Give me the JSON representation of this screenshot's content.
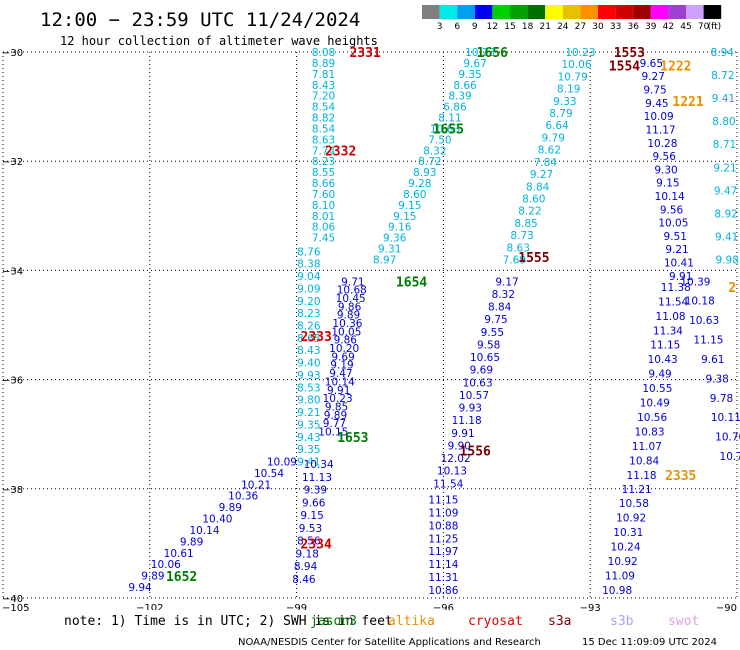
{
  "title": "12:00 − 23:59 UTC 11/24/2024",
  "subtitle": "12 hour collection of altimeter wave heights",
  "colorbar": {
    "labels": [
      "3",
      "6",
      "9",
      "12",
      "15",
      "18",
      "21",
      "24",
      "27",
      "30",
      "33",
      "36",
      "39",
      "42",
      "45",
      "70",
      "(ft)"
    ],
    "colors": [
      "#808080",
      "#00e8e8",
      "#00a0f0",
      "#0000f0",
      "#00d000",
      "#00a000",
      "#007000",
      "#ffff00",
      "#e8c000",
      "#ff9000",
      "#ff0000",
      "#d00000",
      "#a00000",
      "#ff00ff",
      "#a040d0",
      "#d0a0ff",
      "#000000"
    ]
  },
  "chart_data": {
    "type": "scatter",
    "xlim": [
      -105,
      -90
    ],
    "ylim": [
      -40,
      -30
    ],
    "x_ticks": [
      {
        "value": -105,
        "label": "−105"
      },
      {
        "value": -102,
        "label": "−102"
      },
      {
        "value": -99,
        "label": "−99"
      },
      {
        "value": -96,
        "label": "−96"
      },
      {
        "value": -93,
        "label": "−93"
      },
      {
        "value": -90,
        "label": "−90"
      }
    ],
    "y_ticks": [
      {
        "value": -30,
        "label": "−30"
      },
      {
        "value": -32,
        "label": "−32"
      },
      {
        "value": -34,
        "label": "−34"
      },
      {
        "value": -36,
        "label": "−36"
      },
      {
        "value": -38,
        "label": "−38"
      },
      {
        "value": -40,
        "label": "−40"
      }
    ],
    "grid": true,
    "colors": {
      "light": "#00b4dc",
      "dark": "#0000d8"
    },
    "series": [
      {
        "start": [
          -98.45,
          -30.0
        ],
        "end": [
          -98.45,
          -33.4
        ],
        "values": [
          "8.08",
          "8.89",
          "7.81",
          "8.43",
          "7.20",
          "8.54",
          "8.82",
          "8.54",
          "8.63",
          "7.74",
          "8.23",
          "8.55",
          "8.66",
          "7.60",
          "8.10",
          "8.01",
          "8.06",
          "7.45"
        ],
        "color": "light"
      },
      {
        "start": [
          -98.75,
          -33.65
        ],
        "end": [
          -98.75,
          -37.5
        ],
        "values": [
          "8.76",
          "8.38",
          "9.04",
          "9.09",
          "9.20",
          "8.23",
          "8.26",
          "8.65",
          "8.43",
          "9.40",
          "9.93",
          "8.53",
          "9.80",
          "9.21",
          "9.35",
          "9.43",
          "9.35",
          "9.41"
        ],
        "color": "light"
      },
      {
        "start": [
          -97.85,
          -34.2
        ],
        "end": [
          -98.25,
          -36.95
        ],
        "values": [
          "9.71",
          "10.68",
          "10.45",
          "9.86",
          "9.89",
          "10.36",
          "10.05",
          "9.86",
          "10.20",
          "9.69",
          "9.19",
          "9.47",
          "10.14",
          "9.91",
          "10.23",
          "9.85",
          "9.89",
          "9.77",
          "10.15"
        ],
        "color": "dark"
      },
      {
        "start": [
          -98.55,
          -37.55
        ],
        "end": [
          -98.85,
          -39.65
        ],
        "values": [
          "10.34",
          "11.13",
          "9.39",
          "9.66",
          "9.15",
          "9.53",
          "8.56",
          "9.18",
          "8.94",
          "8.46"
        ],
        "color": "dark"
      },
      {
        "start": [
          -99.3,
          -37.5
        ],
        "end": [
          -102.2,
          -39.8
        ],
        "values": [
          "10.09",
          "10.54",
          "10.21",
          "10.36",
          "9.89",
          "10.40",
          "10.14",
          "9.89",
          "10.61",
          "10.06",
          "9.89",
          "9.94"
        ],
        "color": "dark"
      },
      {
        "start": [
          -95.25,
          -30.0
        ],
        "end": [
          -97.2,
          -33.8
        ],
        "values": [
          "10.23",
          "9.67",
          "9.35",
          "8.66",
          "8.39",
          "6.86",
          "8.11",
          "10.63",
          "7.50",
          "8.32",
          "8.72",
          "8.93",
          "9.28",
          "8.60",
          "9.15",
          "9.15",
          "9.16",
          "9.36",
          "9.31",
          "8.97"
        ],
        "color": "light"
      },
      {
        "start": [
          -93.2,
          -30.0
        ],
        "end": [
          -94.55,
          -33.8
        ],
        "values": [
          "10.23",
          "10.06",
          "10.79",
          "8.19",
          "9.33",
          "8.79",
          "6.64",
          "9.79",
          "8.62",
          "7.84",
          "9.27",
          "8.84",
          "8.60",
          "8.22",
          "8.85",
          "8.73",
          "8.63",
          "7.69"
        ],
        "color": "light"
      },
      {
        "start": [
          -94.7,
          -34.2
        ],
        "end": [
          -95.9,
          -37.9
        ],
        "values": [
          "9.17",
          "8.32",
          "8.84",
          "9.75",
          "9.55",
          "9.58",
          "10.65",
          "9.69",
          "10.63",
          "10.57",
          "9.93",
          "11.18",
          "9.91",
          "9.90",
          "12.02",
          "10.13",
          "11.54"
        ],
        "color": "dark"
      },
      {
        "start": [
          -96.0,
          -38.2
        ],
        "end": [
          -96.0,
          -39.85
        ],
        "values": [
          "11.15",
          "11.09",
          "10.88",
          "11.25",
          "11.97",
          "11.14",
          "11.31",
          "10.86"
        ],
        "color": "dark"
      },
      {
        "start": [
          -91.75,
          -30.2
        ],
        "end": [
          -91.15,
          -34.1
        ],
        "values": [
          "9.65",
          "9.27",
          "9.75",
          "9.45",
          "10.09",
          "11.17",
          "10.28",
          "9.56",
          "9.30",
          "9.15",
          "10.14",
          "9.56",
          "10.05",
          "9.51",
          "9.21",
          "10.41",
          "9.91"
        ],
        "color": "dark"
      },
      {
        "start": [
          -91.25,
          -34.3
        ],
        "end": [
          -91.95,
          -37.75
        ],
        "values": [
          "11.38",
          "11.54",
          "11.08",
          "11.34",
          "11.15",
          "10.43",
          "9.49",
          "10.55",
          "10.49",
          "10.56",
          "10.83",
          "11.07",
          "10.84",
          "11.18"
        ],
        "color": "dark"
      },
      {
        "start": [
          -92.05,
          -38.0
        ],
        "end": [
          -92.45,
          -39.85
        ],
        "values": [
          "11.21",
          "10.58",
          "10.92",
          "10.31",
          "10.24",
          "10.92",
          "11.09",
          "10.98"
        ],
        "color": "dark"
      },
      {
        "start": [
          -90.3,
          -30.0
        ],
        "end": [
          -90.2,
          -33.8
        ],
        "values": [
          "8.94",
          "8.72",
          "9.41",
          "8.80",
          "8.71",
          "9.21",
          "9.47",
          "8.92",
          "9.41",
          "9.98"
        ],
        "color": "light"
      },
      {
        "start": [
          -90.85,
          -34.2
        ],
        "end": [
          -90.05,
          -37.4
        ],
        "values": [
          "10.39",
          "10.18",
          "10.63",
          "11.15",
          "9.61",
          "9.38",
          "9.78",
          "10.11",
          "10.70",
          "10.71"
        ],
        "color": "dark"
      }
    ],
    "annotations": [
      {
        "text": "2331",
        "x": -97.6,
        "y": -30.0,
        "color": "#cc0000"
      },
      {
        "text": "2332",
        "x": -98.1,
        "y": -31.8,
        "color": "#cc0000"
      },
      {
        "text": "2333",
        "x": -98.6,
        "y": -35.2,
        "color": "#cc0000"
      },
      {
        "text": "2334",
        "x": -98.6,
        "y": -39.0,
        "color": "#cc0000"
      },
      {
        "text": "1656",
        "x": -95.0,
        "y": -30.0,
        "color": "#007a00"
      },
      {
        "text": "1655",
        "x": -95.9,
        "y": -31.4,
        "color": "#007a00"
      },
      {
        "text": "1654",
        "x": -96.65,
        "y": -34.2,
        "color": "#007a00"
      },
      {
        "text": "1653",
        "x": -97.85,
        "y": -37.05,
        "color": "#007a00"
      },
      {
        "text": "1652",
        "x": -101.35,
        "y": -39.6,
        "color": "#007a00"
      },
      {
        "text": "1553",
        "x": -92.2,
        "y": -30.0,
        "color": "#7a0000"
      },
      {
        "text": "1554",
        "x": -92.3,
        "y": -30.25,
        "color": "#7a0000"
      },
      {
        "text": "1555",
        "x": -94.15,
        "y": -33.75,
        "color": "#7a0000"
      },
      {
        "text": "1556",
        "x": -95.35,
        "y": -37.3,
        "color": "#7a0000"
      },
      {
        "text": "1222",
        "x": -91.25,
        "y": -30.25,
        "color": "#e89000"
      },
      {
        "text": "1221",
        "x": -91.0,
        "y": -30.9,
        "color": "#e89000"
      },
      {
        "text": "2335",
        "x": -91.15,
        "y": -37.75,
        "color": "#e89000"
      },
      {
        "text": "2",
        "x": -90.1,
        "y": -34.3,
        "color": "#e89000"
      }
    ]
  },
  "legend_note": "note: 1) Time is in UTC; 2) SWH is in feet",
  "satellites": [
    {
      "name": "jason3",
      "color": "#007a00"
    },
    {
      "name": "altika",
      "color": "#e89000"
    },
    {
      "name": "cryosat",
      "color": "#e80000"
    },
    {
      "name": "s3a",
      "color": "#7a0000"
    },
    {
      "name": "s3b",
      "color": "#b0a0e8"
    },
    {
      "name": "swot",
      "color": "#e0a0e0"
    }
  ],
  "footer": {
    "org": "NOAA/NESDIS Center for Satellite Applications and Research",
    "timestamp": "15 Dec 11:09:09 UTC 2024"
  }
}
